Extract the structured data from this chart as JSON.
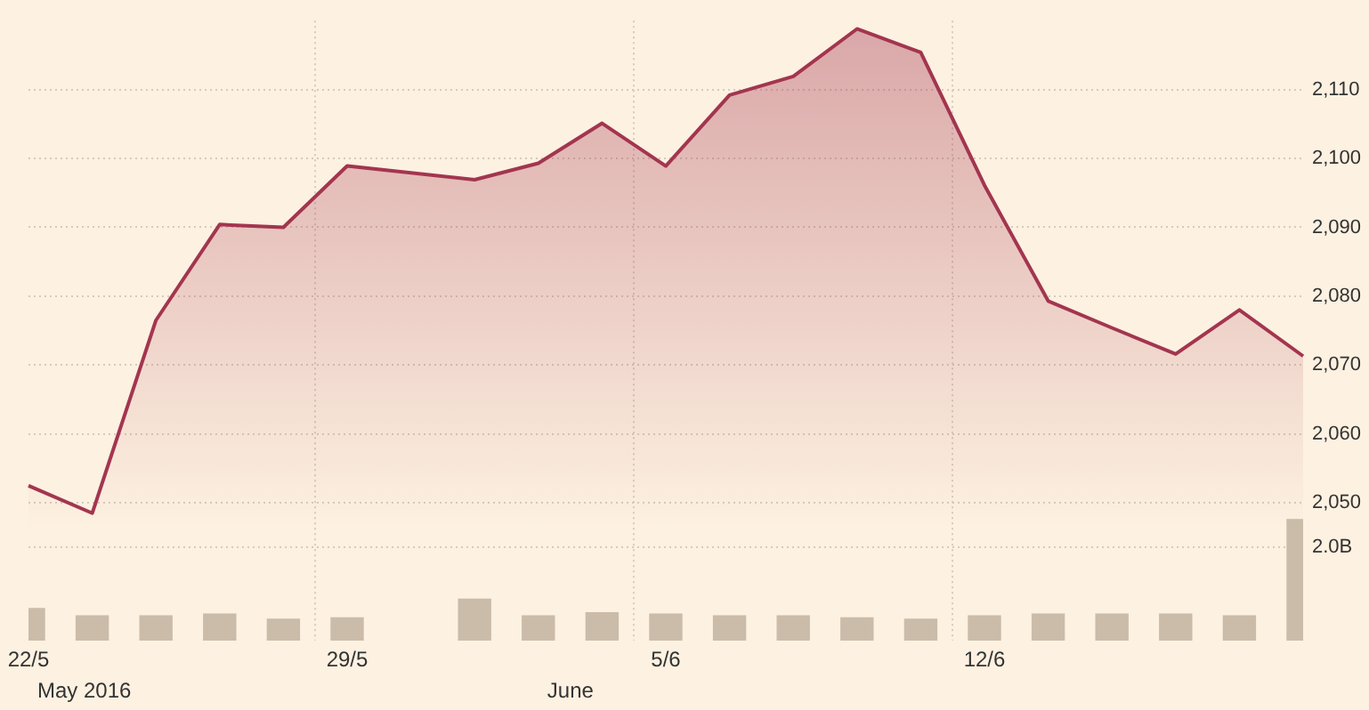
{
  "chart_data": {
    "type": "area",
    "categories": [
      "22/5",
      null,
      null,
      null,
      null,
      "29/5",
      null,
      null,
      null,
      null,
      "5/6",
      null,
      null,
      null,
      null,
      "12/6",
      null,
      null,
      null,
      null,
      null
    ],
    "series": [
      {
        "color": "#a3354f",
        "values": [
          2052.5,
          2048.5,
          2076.5,
          2090.4,
          2090.0,
          2098.9,
          null,
          2096.9,
          2099.3,
          2105.1,
          2098.9,
          2109.2,
          2111.9,
          2118.8,
          2115.4,
          2096.1,
          2079.3,
          2075.4,
          2071.6,
          2078.0,
          2071.3
        ]
      },
      {
        "type": "bar",
        "axis": "y2",
        "color": "#cbbcaa",
        "values": [
          0.7,
          0.54,
          0.54,
          0.58,
          0.47,
          0.5,
          null,
          0.9,
          0.54,
          0.61,
          0.58,
          0.54,
          0.54,
          0.5,
          0.47,
          0.54,
          0.58,
          0.58,
          0.58,
          0.54,
          2.6
        ]
      }
    ],
    "ylim": [
      2030,
      2120
    ],
    "yticks": [
      {
        "value": 2050,
        "label": "2,050"
      },
      {
        "value": 2060,
        "label": "2,060"
      },
      {
        "value": 2070,
        "label": "2,070"
      },
      {
        "value": 2080,
        "label": "2,080"
      },
      {
        "value": 2090,
        "label": "2,090"
      },
      {
        "value": 2100,
        "label": "2,100"
      },
      {
        "value": 2110,
        "label": "2,110"
      }
    ],
    "y2lim": [
      0,
      13.25
    ],
    "y2ticks": [
      {
        "value": 2,
        "label": "2.0B"
      }
    ],
    "grid": true,
    "annotations": [
      "May 2016",
      "June"
    ]
  }
}
